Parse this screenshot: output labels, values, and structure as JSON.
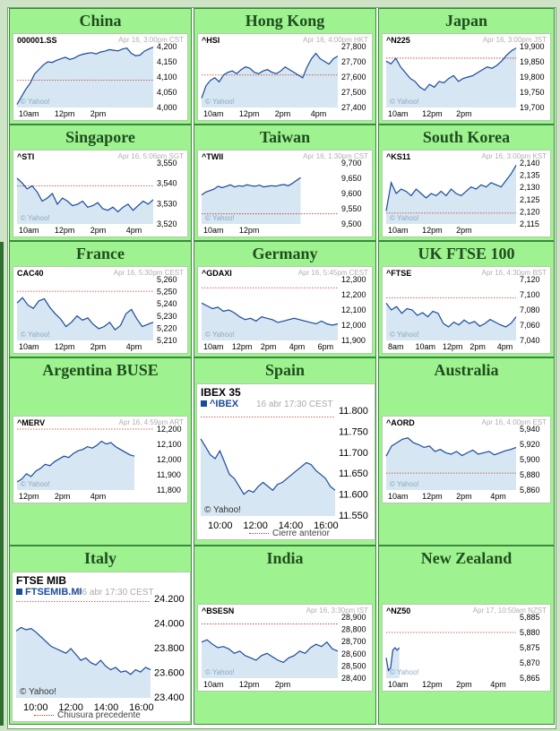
{
  "markets": [
    {
      "key": "china",
      "title": "China",
      "symbol": "000001.SS",
      "timestamp": "Apr 16, 3:00pm CST",
      "y_ticks": [
        "4,200",
        "4,150",
        "4,100",
        "4,050",
        "4,000"
      ],
      "x_ticks": [
        "10am",
        "12pm",
        "2pm"
      ],
      "watermark": "© Yahoo!",
      "chart_data": {
        "type": "line",
        "ylim": [
          4000,
          4200
        ],
        "prev_close": 4090,
        "values": [
          4010,
          4035,
          4060,
          4080,
          4110,
          4125,
          4140,
          4150,
          4148,
          4155,
          4160,
          4165,
          4158,
          4162,
          4170,
          4175,
          4178,
          4180,
          4176,
          4182,
          4185,
          4190,
          4188,
          4186,
          4192,
          4195,
          4178,
          4170,
          4172,
          4185,
          4192,
          4198
        ]
      }
    },
    {
      "key": "hongkong",
      "title": "Hong Kong",
      "symbol": "^HSI",
      "timestamp": "Apr 16, 4:00pm HKT",
      "y_ticks": [
        "27,800",
        "27,700",
        "27,600",
        "27,500",
        "27,400"
      ],
      "x_ticks": [
        "10am",
        "12pm",
        "2pm",
        "4pm"
      ],
      "watermark": "© Yahoo!",
      "chart_data": {
        "type": "line",
        "ylim": [
          27400,
          27850
        ],
        "prev_close": 27640,
        "values": [
          27470,
          27560,
          27600,
          27620,
          27590,
          27640,
          27660,
          27670,
          27650,
          27680,
          27700,
          27690,
          27660,
          27650,
          27670,
          27680,
          27660,
          27650,
          27670,
          27700,
          27680,
          27660,
          27640,
          27620,
          27700,
          27760,
          27800,
          27760,
          27740,
          27720,
          27760,
          27780
        ]
      }
    },
    {
      "key": "japan",
      "title": "Japan",
      "symbol": "^N225",
      "timestamp": "Apr 16, 3:00pm JST",
      "y_ticks": [
        "19,900",
        "19,850",
        "19,800",
        "19,750",
        "19,700"
      ],
      "x_ticks": [
        "10am",
        "12pm",
        "2pm"
      ],
      "watermark": "© Yahoo!",
      "chart_data": {
        "type": "line",
        "ylim": [
          19700,
          19910
        ],
        "prev_close": 19870,
        "values": [
          19860,
          19850,
          19870,
          19840,
          19820,
          19800,
          19790,
          19770,
          19760,
          19780,
          19770,
          19790,
          19785,
          19800,
          19810,
          19790,
          19800,
          19805,
          19810,
          19820,
          19830,
          19840,
          19835,
          19845,
          19860,
          19880,
          19895,
          19905
        ]
      }
    },
    {
      "key": "singapore",
      "title": "Singapore",
      "symbol": "^STI",
      "timestamp": "Apr 16, 5:06pm SGT",
      "y_ticks": [
        "3,550",
        "3,540",
        "3,530",
        "3,520"
      ],
      "x_ticks": [
        "10am",
        "12pm",
        "2pm",
        "4pm"
      ],
      "watermark": "© Yahoo!",
      "chart_data": {
        "type": "line",
        "ylim": [
          3515,
          3555
        ],
        "prev_close": 3540,
        "values": [
          3545,
          3542,
          3538,
          3540,
          3536,
          3530,
          3532,
          3535,
          3528,
          3532,
          3530,
          3527,
          3528,
          3530,
          3526,
          3527,
          3529,
          3525,
          3524,
          3526,
          3523,
          3526,
          3528,
          3524,
          3527,
          3530,
          3528,
          3531
        ]
      }
    },
    {
      "key": "taiwan",
      "title": "Taiwan",
      "symbol": "^TWII",
      "timestamp": "Apr 16, 1:30pm CST",
      "y_ticks": [
        "9,700",
        "9,650",
        "9,600",
        "9,550",
        "9,500"
      ],
      "x_ticks": [
        "10am",
        "12pm"
      ],
      "watermark": "© Yahoo!",
      "chart_data": {
        "type": "line",
        "ylim": [
          9500,
          9710
        ],
        "prev_close": 9535,
        "values": [
          9600,
          9610,
          9615,
          9620,
          9630,
          9625,
          9630,
          9635,
          9628,
          9632,
          9630,
          9635,
          9632,
          9630,
          9634,
          9628,
          9630,
          9632,
          9630,
          9634,
          9636,
          9632,
          9640,
          9650,
          9660
        ]
      }
    },
    {
      "key": "southkorea",
      "title": "South Korea",
      "symbol": "^KS11",
      "timestamp": "Apr 16, 3:00pm KST",
      "y_ticks": [
        "2,140",
        "2,135",
        "2,130",
        "2,125",
        "2,120",
        "2,115"
      ],
      "x_ticks": [
        "10am",
        "12pm",
        "2pm"
      ],
      "watermark": "© Yahoo!",
      "chart_data": {
        "type": "line",
        "ylim": [
          2114,
          2142
        ],
        "prev_close": 2119,
        "values": [
          2120,
          2133,
          2128,
          2130,
          2129,
          2127,
          2130,
          2128,
          2126,
          2128,
          2127,
          2129,
          2127,
          2130,
          2128,
          2127,
          2129,
          2131,
          2130,
          2132,
          2131,
          2133,
          2132,
          2131,
          2134,
          2137,
          2141
        ]
      }
    },
    {
      "key": "france",
      "title": "France",
      "symbol": "CAC40",
      "timestamp": "Apr 16, 5:30pm CEST",
      "y_ticks": [
        "5,260",
        "5,250",
        "5,240",
        "5,230",
        "5,220",
        "5,210"
      ],
      "x_ticks": [
        "10am",
        "12pm",
        "2pm",
        "4pm"
      ],
      "watermark": "© Yahoo!",
      "chart_data": {
        "type": "line",
        "ylim": [
          5205,
          5262
        ],
        "prev_close": 5251,
        "values": [
          5240,
          5245,
          5238,
          5235,
          5242,
          5244,
          5236,
          5230,
          5225,
          5218,
          5222,
          5228,
          5224,
          5226,
          5220,
          5216,
          5218,
          5222,
          5215,
          5219,
          5230,
          5234,
          5225,
          5218,
          5220,
          5222
        ]
      }
    },
    {
      "key": "germany",
      "title": "Germany",
      "symbol": "^GDAXI",
      "timestamp": "Apr 16, 5:45pm CEST",
      "y_ticks": [
        "12,300",
        "12,200",
        "12,100",
        "12,000",
        "11,900"
      ],
      "x_ticks": [
        "10am",
        "12pm",
        "2pm",
        "4pm",
        "6pm"
      ],
      "watermark": "© Yahoo!",
      "chart_data": {
        "type": "line",
        "ylim": [
          11880,
          12320
        ],
        "prev_close": 12260,
        "values": [
          12150,
          12130,
          12110,
          12120,
          12090,
          12100,
          12080,
          12050,
          12030,
          12040,
          12020,
          12050,
          12040,
          12030,
          12010,
          12020,
          12030,
          12040,
          12030,
          12020,
          12010,
          12000,
          12020,
          12000,
          11990,
          12000
        ]
      }
    },
    {
      "key": "ukftse",
      "title": "UK FTSE 100",
      "symbol": "^FTSE",
      "timestamp": "Apr 16, 4:30pm BST",
      "y_ticks": [
        "7,120",
        "7,100",
        "7,080",
        "7,060",
        "7,040"
      ],
      "x_ticks": [
        "8am",
        "10am",
        "12pm",
        "2pm",
        "4pm"
      ],
      "watermark": "© Yahoo!",
      "chart_data": {
        "type": "line",
        "ylim": [
          7035,
          7125
        ],
        "prev_close": 7098,
        "values": [
          7090,
          7080,
          7085,
          7075,
          7082,
          7080,
          7072,
          7076,
          7070,
          7078,
          7075,
          7060,
          7055,
          7062,
          7058,
          7065,
          7060,
          7063,
          7056,
          7060,
          7066,
          7062,
          7058,
          7055,
          7060,
          7070
        ]
      }
    },
    {
      "key": "argentina",
      "title": "Argentina BUSE",
      "symbol": "^MERV",
      "timestamp": "Apr 16, 4:59pm ART",
      "y_ticks": [
        "12,200",
        "12,100",
        "12,000",
        "11,900",
        "11,800"
      ],
      "x_ticks": [
        "12pm",
        "2pm",
        "4pm"
      ],
      "watermark": "© Yahoo!",
      "chart_data": {
        "type": "line",
        "ylim": [
          11780,
          12230
        ],
        "prev_close": 12240,
        "values": [
          11840,
          11860,
          11900,
          11880,
          11920,
          11940,
          11970,
          11960,
          11990,
          12010,
          12030,
          12020,
          12050,
          12070,
          12080,
          12100,
          12090,
          12110,
          12140,
          12120,
          12130,
          12100,
          12080,
          12060,
          12040,
          12030
        ]
      }
    },
    {
      "key": "spain",
      "title": "Spain",
      "big": true,
      "big_title": "IBEX 35",
      "symbol": "^IBEX",
      "timestamp": "16 abr 17:30 CEST",
      "y_ticks": [
        "11.800",
        "11.750",
        "11.700",
        "11.650",
        "11.600",
        "11.550"
      ],
      "x_ticks": [
        "10:00",
        "12:00",
        "14:00",
        "16:00"
      ],
      "watermark": "© Yahoo!",
      "legend": "Cierre anterior",
      "chart_data": {
        "type": "line",
        "ylim": [
          11545,
          11810
        ],
        "prev_close": 11795,
        "values": [
          11740,
          11720,
          11700,
          11690,
          11710,
          11680,
          11650,
          11640,
          11620,
          11600,
          11610,
          11605,
          11620,
          11630,
          11620,
          11610,
          11625,
          11630,
          11640,
          11650,
          11660,
          11670,
          11680,
          11675,
          11660,
          11650,
          11640,
          11620,
          11610
        ]
      }
    },
    {
      "key": "australia",
      "title": "Australia",
      "symbol": "^AORD",
      "timestamp": "Apr 16, 4:00pm EST",
      "y_ticks": [
        "5,940",
        "5,920",
        "5,900",
        "5,880",
        "5,860"
      ],
      "x_ticks": [
        "10am",
        "12pm",
        "2pm",
        "4pm"
      ],
      "watermark": "© Yahoo!",
      "chart_data": {
        "type": "line",
        "ylim": [
          5855,
          5945
        ],
        "prev_close": 5880,
        "values": [
          5905,
          5920,
          5925,
          5930,
          5932,
          5925,
          5922,
          5918,
          5920,
          5912,
          5915,
          5910,
          5908,
          5912,
          5906,
          5910,
          5914,
          5908,
          5910,
          5912,
          5907,
          5910,
          5913,
          5915,
          5918
        ]
      }
    },
    {
      "key": "italy",
      "title": "Italy",
      "big": true,
      "big_title": "FTSE MIB",
      "symbol": "FTSEMIB.MI",
      "timestamp": "16 abr 17:30 CEST",
      "y_ticks": [
        "24.200",
        "24.000",
        "23.800",
        "23.600",
        "23.400"
      ],
      "x_ticks": [
        "10:00",
        "12:00",
        "14:00",
        "16:00"
      ],
      "watermark": "© Yahoo!",
      "legend": "Chiusura precedente",
      "chart_data": {
        "type": "line",
        "ylim": [
          23380,
          24220
        ],
        "prev_close": 24200,
        "values": [
          23950,
          23980,
          23960,
          23970,
          23940,
          23900,
          23860,
          23820,
          23800,
          23780,
          23760,
          23800,
          23750,
          23700,
          23720,
          23680,
          23660,
          23700,
          23650,
          23620,
          23640,
          23600,
          23610,
          23580,
          23620,
          23600,
          23640,
          23620
        ]
      }
    },
    {
      "key": "india",
      "title": "India",
      "symbol": "^BSESN",
      "timestamp": "Apr 16, 3:30pm IST",
      "y_ticks": [
        "28,900",
        "28,800",
        "28,700",
        "28,600",
        "28,500",
        "28,400"
      ],
      "x_ticks": [
        "10am",
        "12pm",
        "2pm"
      ],
      "watermark": "© Yahoo!",
      "chart_data": {
        "type": "line",
        "ylim": [
          28380,
          28920
        ],
        "prev_close": 28860,
        "values": [
          28700,
          28720,
          28680,
          28650,
          28660,
          28640,
          28600,
          28620,
          28580,
          28560,
          28540,
          28580,
          28600,
          28570,
          28540,
          28520,
          28560,
          28580,
          28620,
          28600,
          28650,
          28680,
          28660,
          28700,
          28640,
          28620
        ]
      }
    },
    {
      "key": "newzealand",
      "title": "New Zealand",
      "symbol": "^NZ50",
      "timestamp": "Apr 17, 10:50am NZST",
      "y_ticks": [
        "5,885",
        "5,880",
        "5,875",
        "5,870",
        "5,865"
      ],
      "x_ticks": [
        "10am",
        "12pm",
        "2pm",
        "4pm"
      ],
      "watermark": "© Yahoo!",
      "chart_data": {
        "type": "line",
        "ylim": [
          5863,
          5887
        ],
        "prev_close": 5881,
        "values": [
          5871,
          5866,
          5867,
          5874,
          5875,
          5874,
          5875
        ]
      }
    }
  ],
  "colors": {
    "line": "#1a4a9a",
    "fill": "#d6e6f2",
    "prev": "#c0392b",
    "cell": "#9ef28f",
    "title": "#1f4d1f"
  }
}
